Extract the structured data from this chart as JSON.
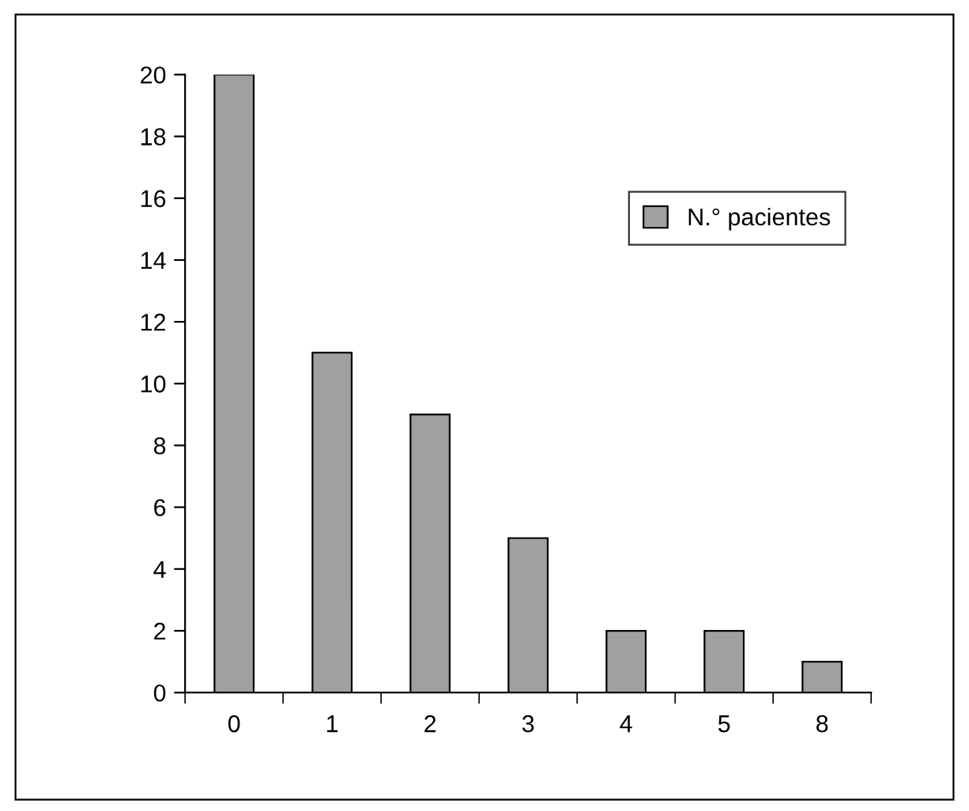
{
  "chart_data": {
    "type": "bar",
    "categories": [
      "0",
      "1",
      "2",
      "3",
      "4",
      "5",
      "8"
    ],
    "series": [
      {
        "name": "N.° pacientes",
        "color": "#a0a0a0",
        "values": [
          20,
          11,
          9,
          5,
          2,
          2,
          1
        ]
      }
    ],
    "ylim": [
      0,
      20
    ],
    "yticks": [
      0,
      2,
      4,
      6,
      8,
      10,
      12,
      14,
      16,
      18,
      20
    ],
    "grid": false,
    "legend": "top right"
  }
}
